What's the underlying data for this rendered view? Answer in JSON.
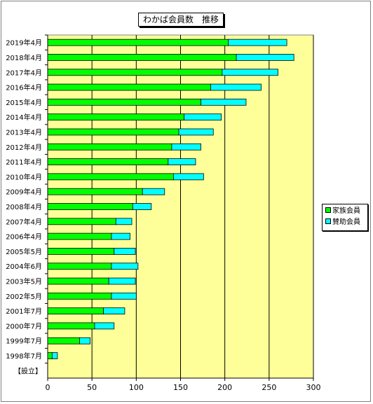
{
  "chart_data": {
    "type": "bar",
    "orientation": "horizontal",
    "stacked": true,
    "title": "わかば会員数　推移",
    "categories": [
      "2019年4月",
      "2018年4月",
      "2017年4月",
      "2016年4月",
      "2015年4月",
      "2014年4月",
      "2013年4月",
      "2012年4月",
      "2011年4月",
      "2010年4月",
      "2009年4月",
      "2008年4月",
      "2007年4月",
      "2006年4月",
      "2005年5月",
      "2004年6月",
      "2003年5月",
      "2002年5月",
      "2001年7月",
      "2000年7月",
      "1999年7月",
      "1998年7月",
      "【設立】"
    ],
    "series": [
      {
        "name": "家族会員",
        "color": "#00ff00",
        "values": [
          204,
          213,
          197,
          184,
          173,
          154,
          148,
          140,
          136,
          142,
          107,
          96,
          77,
          72,
          75,
          72,
          69,
          72,
          63,
          53,
          36,
          5,
          0
        ]
      },
      {
        "name": "賛助会員",
        "color": "#00ffff",
        "values": [
          66,
          65,
          63,
          57,
          51,
          42,
          39,
          33,
          31,
          34,
          25,
          21,
          18,
          21,
          24,
          30,
          30,
          28,
          24,
          22,
          12,
          6,
          0
        ]
      }
    ],
    "xlim": [
      0,
      300
    ],
    "xticks": [
      "0",
      "50",
      "100",
      "150",
      "200",
      "250",
      "300"
    ],
    "grid": "vertical",
    "plot_background": "#ffff99",
    "legend_position": "right"
  }
}
